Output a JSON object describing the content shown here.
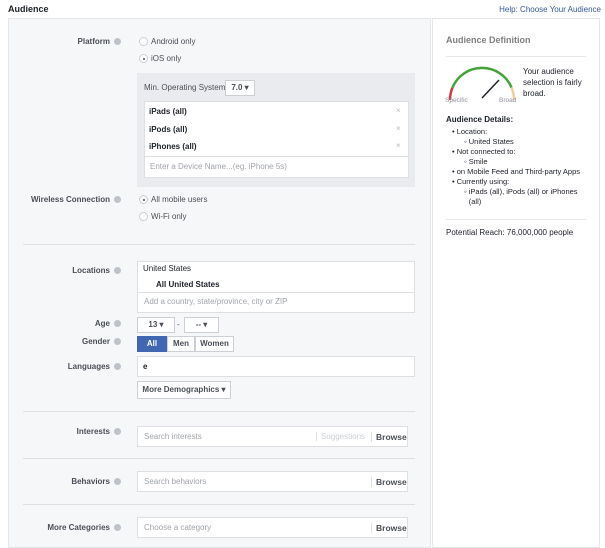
{
  "header": {
    "title": "Audience",
    "help_link": "Help: Choose Your Audience"
  },
  "platform": {
    "label": "Platform",
    "options": [
      "Android only",
      "iOS only"
    ],
    "selected": "iOS only",
    "min_os_label": "Min. Operating System:",
    "min_os_value": "7.0",
    "devices": [
      "iPads (all)",
      "iPods (all)",
      "iPhones (all)"
    ],
    "device_placeholder": "Enter a Device Name...(eg. iPhone 5s)"
  },
  "wireless": {
    "label": "Wireless Connection",
    "options": [
      "All mobile users",
      "Wi-Fi only"
    ],
    "selected": "All mobile users"
  },
  "locations": {
    "label": "Locations",
    "country": "United States",
    "region": "All United States",
    "placeholder": "Add a country, state/province, city or ZIP"
  },
  "age": {
    "label": "Age",
    "min": "13",
    "separator": "-",
    "max": "--"
  },
  "gender": {
    "label": "Gender",
    "options": [
      "All",
      "Men",
      "Women"
    ],
    "selected": "All"
  },
  "languages": {
    "label": "Languages",
    "value": "e"
  },
  "more_demographics": "More Demographics",
  "interests": {
    "label": "Interests",
    "placeholder": "Search interests",
    "suggestions": "Suggestions",
    "browse": "Browse"
  },
  "behaviors": {
    "label": "Behaviors",
    "placeholder": "Search behaviors",
    "browse": "Browse"
  },
  "more_categories": {
    "label": "More Categories",
    "placeholder": "Choose a category",
    "browse": "Browse"
  },
  "definition": {
    "title": "Audience Definition",
    "gauge_specific": "Specific",
    "gauge_broad": "Broad",
    "summary": "Your audience selection is fairly broad.",
    "details_title": "Audience Details:",
    "details": [
      {
        "item": "Location:",
        "sub": "United States"
      },
      {
        "item": "Not connected to:",
        "sub": "Smile"
      },
      {
        "item": "on Mobile Feed and Third-party Apps",
        "sub": null
      },
      {
        "item": "Currently using:",
        "sub": "iPads (all), iPods (all) or iPhones (all)"
      }
    ],
    "reach": "Potential Reach: 76,000,000 people"
  },
  "colors": {
    "accent": "#4267b2",
    "link": "#365899",
    "gauge_red": "#d0393e",
    "gauge_green": "#42a338",
    "gauge_tan": "#f0cf9a"
  }
}
